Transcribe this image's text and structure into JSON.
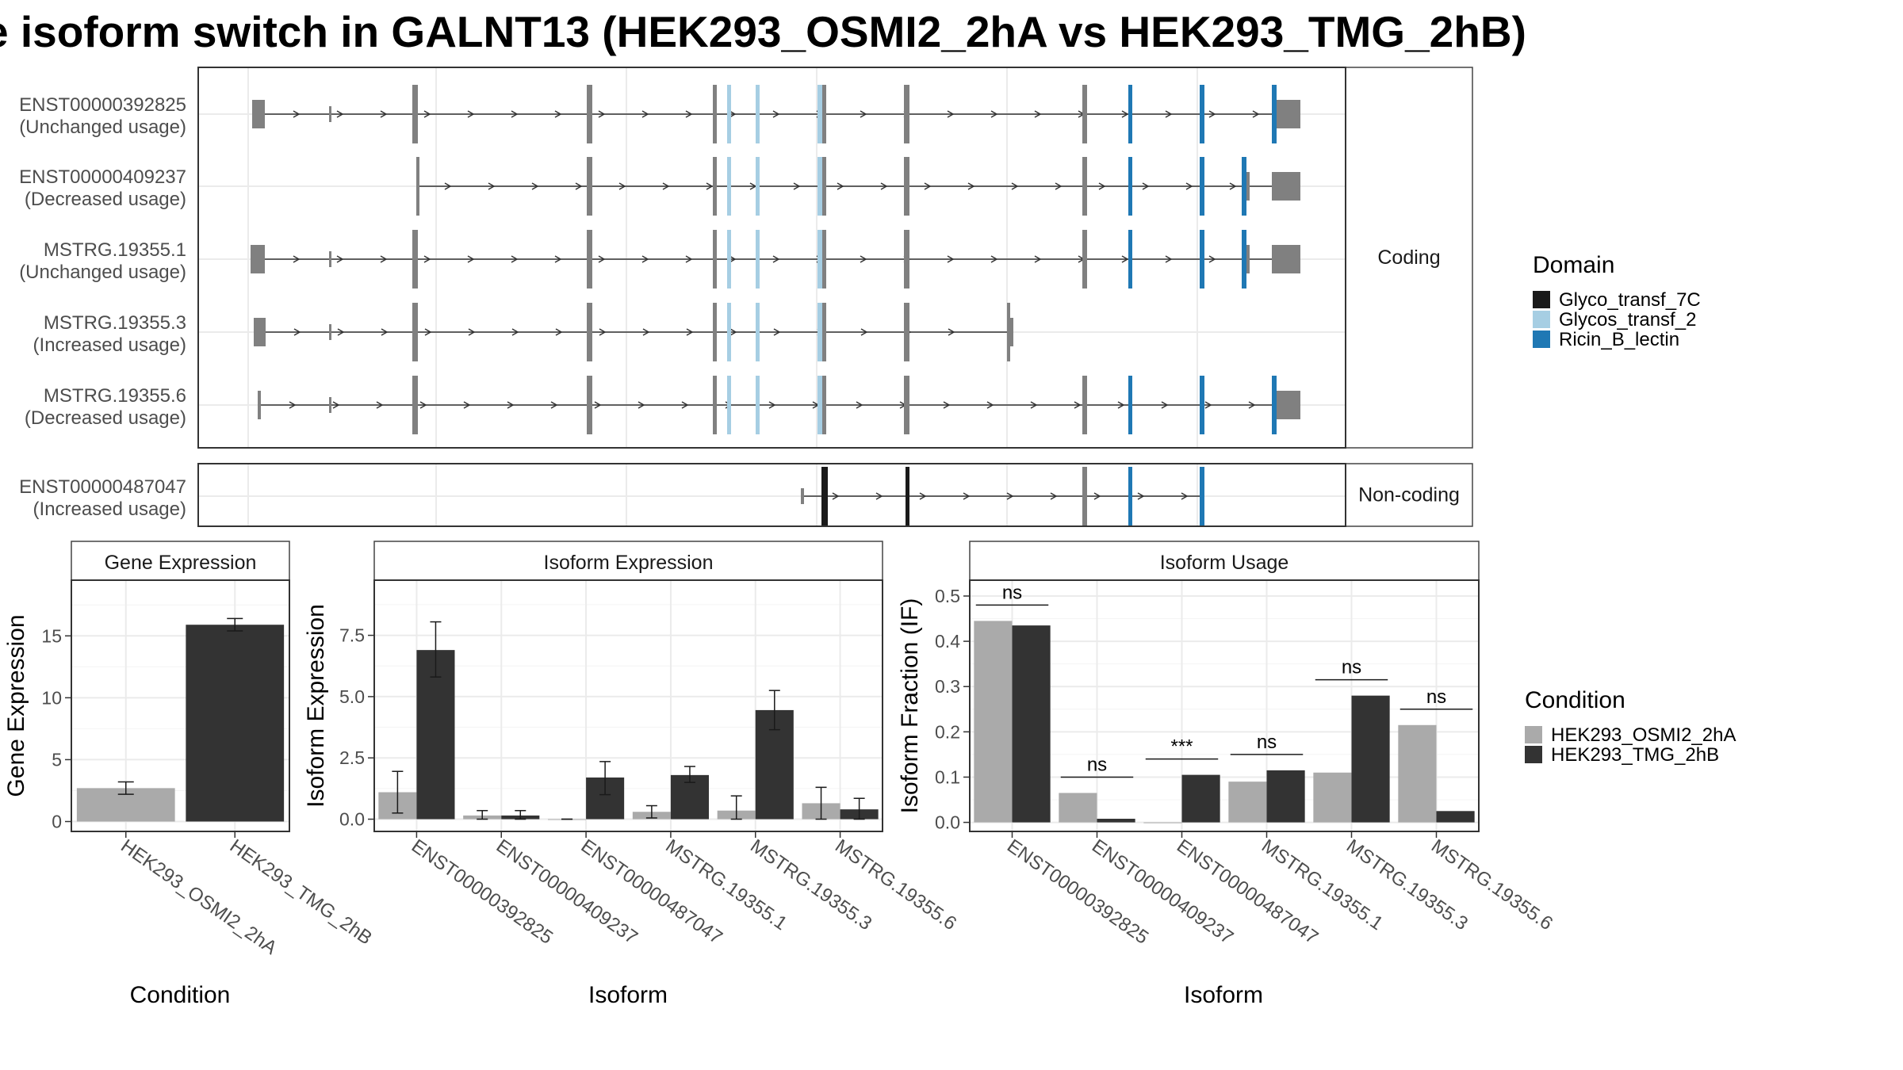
{
  "title": "e isoform switch in GALNT13 (HEK293_OSMI2_2hA vs HEK293_TMG_2hB)",
  "structure": {
    "coding_label": "Coding",
    "noncoding_label": "Non-coding",
    "transcripts": [
      {
        "id": "ENST00000392825",
        "usage": "(Unchanged usage)"
      },
      {
        "id": "ENST00000409237",
        "usage": "(Decreased usage)"
      },
      {
        "id": "MSTRG.19355.1",
        "usage": "(Unchanged usage)"
      },
      {
        "id": "MSTRG.19355.3",
        "usage": "(Increased usage)"
      },
      {
        "id": "MSTRG.19355.6",
        "usage": "(Decreased usage)"
      },
      {
        "id": "ENST00000487047",
        "usage": "(Increased usage)"
      }
    ],
    "domain_legend": {
      "title": "Domain",
      "items": [
        {
          "name": "Glyco_transf_7C",
          "color": "#1a1a1a"
        },
        {
          "name": "Glycos_transf_2",
          "color": "#a6cee3"
        },
        {
          "name": "Ricin_B_lectin",
          "color": "#1f78b4"
        }
      ]
    }
  },
  "condition_legend": {
    "title": "Condition",
    "items": [
      {
        "name": "HEK293_OSMI2_2hA",
        "color": "#aaaaaa"
      },
      {
        "name": "HEK293_TMG_2hB",
        "color": "#333333"
      }
    ]
  },
  "chart_data": [
    {
      "type": "bar",
      "title": "Gene Expression",
      "xlabel": "Condition",
      "ylabel": "Gene Expression",
      "categories": [
        "HEK293_OSMI2_2hA",
        "HEK293_TMG_2hB"
      ],
      "values": [
        2.7,
        15.9
      ],
      "errors": [
        [
          2.2,
          3.2
        ],
        [
          15.4,
          16.4
        ]
      ],
      "ylim": [
        -0.8,
        19.5
      ],
      "yticks": [
        0,
        5,
        10,
        15
      ]
    },
    {
      "type": "bar",
      "title": "Isoform Expression",
      "xlabel": "Isoform",
      "ylabel": "Isoform Expression",
      "categories": [
        "ENST00000392825",
        "ENST00000409237",
        "ENST00000487047",
        "MSTRG.19355.1",
        "MSTRG.19355.3",
        "MSTRG.19355.6"
      ],
      "series": [
        {
          "name": "HEK293_OSMI2_2hA",
          "values": [
            1.1,
            0.15,
            0.0,
            0.3,
            0.35,
            0.65
          ],
          "errors": [
            [
              0.25,
              1.95
            ],
            [
              0.0,
              0.35
            ],
            [
              0.0,
              0.0
            ],
            [
              0.05,
              0.55
            ],
            [
              0.0,
              0.95
            ],
            [
              0.0,
              1.3
            ]
          ]
        },
        {
          "name": "HEK293_TMG_2hB",
          "values": [
            6.9,
            0.15,
            1.7,
            1.8,
            4.45,
            0.4
          ],
          "errors": [
            [
              5.8,
              8.05
            ],
            [
              0.0,
              0.35
            ],
            [
              1.0,
              2.35
            ],
            [
              1.5,
              2.15
            ],
            [
              3.65,
              5.25
            ],
            [
              0.0,
              0.85
            ]
          ]
        }
      ],
      "ylim": [
        -0.5,
        9.75
      ],
      "yticks": [
        0.0,
        2.5,
        5.0,
        7.5
      ],
      "ytick_labels": [
        "0.0",
        "2.5",
        "5.0",
        "7.5"
      ]
    },
    {
      "type": "bar",
      "title": "Isoform Usage",
      "xlabel": "Isoform",
      "ylabel": "Isoform Fraction (IF)",
      "categories": [
        "ENST00000392825",
        "ENST00000409237",
        "ENST00000487047",
        "MSTRG.19355.1",
        "MSTRG.19355.3",
        "MSTRG.19355.6"
      ],
      "series": [
        {
          "name": "HEK293_OSMI2_2hA",
          "values": [
            0.445,
            0.065,
            0.0,
            0.09,
            0.11,
            0.215
          ]
        },
        {
          "name": "HEK293_TMG_2hB",
          "values": [
            0.435,
            0.008,
            0.105,
            0.115,
            0.28,
            0.025
          ]
        }
      ],
      "significance": [
        "ns",
        "ns",
        "***",
        "ns",
        "ns",
        "ns"
      ],
      "ylim": [
        -0.02,
        0.535
      ],
      "yticks": [
        0.0,
        0.1,
        0.2,
        0.3,
        0.4,
        0.5
      ],
      "ytick_labels": [
        "0.0",
        "0.1",
        "0.2",
        "0.3",
        "0.4",
        "0.5"
      ]
    }
  ]
}
